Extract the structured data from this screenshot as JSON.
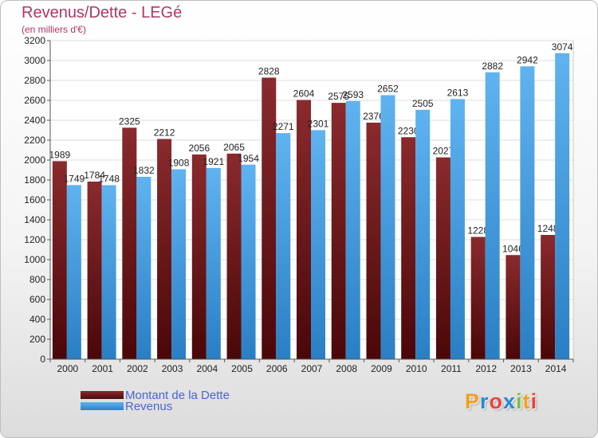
{
  "chart_data": {
    "type": "bar",
    "title": "Revenus/Dette - LEGé",
    "subtitle": "(en milliers d'€)",
    "categories": [
      "2000",
      "2001",
      "2002",
      "2003",
      "2004",
      "2005",
      "2006",
      "2007",
      "2008",
      "2009",
      "2010",
      "2011",
      "2012",
      "2013",
      "2014"
    ],
    "series": [
      {
        "name": "Montant de la Dette",
        "color": "#7a1f22",
        "values": [
          1989,
          1784,
          2325,
          2212,
          2056,
          2065,
          2828,
          2604,
          2575,
          2376,
          2230,
          2027,
          1228,
          1046,
          1248
        ],
        "labels": [
          "1989",
          "1784",
          "2325",
          "2212",
          "2056",
          "2065",
          "2828",
          "2604",
          "2575",
          "2376",
          "2230",
          "2027",
          "1228",
          "1046",
          "1248"
        ]
      },
      {
        "name": "Revenus",
        "color": "#4fa3e6",
        "values": [
          1749,
          1748,
          1832,
          1908,
          1921,
          1954,
          2271,
          2301,
          2593,
          2652,
          2505,
          2613,
          2882,
          2942,
          3074
        ],
        "labels": [
          "1749",
          "1748",
          "1832",
          "1908",
          "1921",
          "1954",
          "2271",
          "2301",
          "2593",
          "2652",
          "2505",
          "2613",
          "2882",
          "2942",
          "3074"
        ]
      }
    ],
    "ylim": [
      0,
      3200
    ],
    "yticks": [
      "0",
      "200",
      "400",
      "600",
      "800",
      "1000",
      "1200",
      "1400",
      "1600",
      "1800",
      "2000",
      "2200",
      "2400",
      "2600",
      "2800",
      "3000",
      "3200"
    ],
    "grid": true,
    "legend_position": "bottom-left"
  },
  "legend": {
    "debt_label": "Montant de la Dette",
    "revenue_label": "Revenus",
    "debt_color": "#7a1f22",
    "revenue_color": "#4fa3e6"
  },
  "logo": {
    "letters": [
      "P",
      "r",
      "o",
      "x",
      "i",
      "t",
      "i"
    ],
    "colors": [
      "#f0a020",
      "#2e86d6",
      "#e8433c",
      "#2e86d6",
      "#7ac143",
      "#f0a020",
      "#e8433c"
    ]
  }
}
